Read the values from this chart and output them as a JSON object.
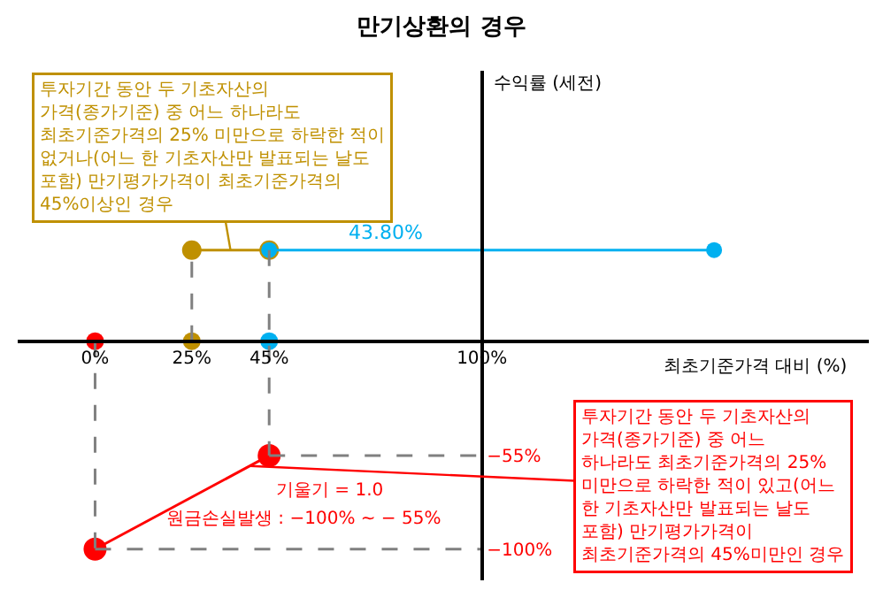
{
  "chart_data": {
    "type": "line",
    "title": "만기상환의 경우",
    "xlabel": "최초기준가격 대비 (%)",
    "ylabel": "수익률 (세전)",
    "xlim": [
      -20,
      200
    ],
    "ylim": [
      -115,
      130
    ],
    "xticks": [
      {
        "value": 0,
        "label": "0%"
      },
      {
        "value": 25,
        "label": "25%"
      },
      {
        "value": 45,
        "label": "45%"
      },
      {
        "value": 100,
        "label": "100%"
      }
    ],
    "yticks": [
      {
        "value": -55,
        "label": "−55%"
      },
      {
        "value": -100,
        "label": "−100%"
      }
    ],
    "series": [
      {
        "x": [
          0,
          45
        ],
        "values": [
          -100,
          -55
        ],
        "color": "#ff0000",
        "marker": "circle"
      },
      {
        "x": [
          25,
          45
        ],
        "values": [
          43.8,
          43.8
        ],
        "color": "#bf9000",
        "marker": "circle"
      },
      {
        "x": [
          45,
          160
        ],
        "values": [
          43.8,
          43.8
        ],
        "color": "#00b0f0",
        "marker": "circle"
      },
      {
        "type": "scatter",
        "x": [
          0,
          25,
          45
        ],
        "values": [
          0,
          0,
          0
        ],
        "colors": [
          "#ff0000",
          "#bf9000",
          "#00b0f0"
        ]
      },
      {
        "x": [
          0,
          0
        ],
        "values": [
          0,
          -100
        ],
        "color": "#808080",
        "line_style": "dashed",
        "marker": "none"
      },
      {
        "x": [
          25,
          25
        ],
        "values": [
          0,
          43.8
        ],
        "color": "#808080",
        "line_style": "dashed",
        "marker": "none"
      },
      {
        "x": [
          45,
          45
        ],
        "values": [
          43.8,
          -55
        ],
        "color": "#808080",
        "line_style": "dashed",
        "marker": "none"
      },
      {
        "x": [
          45,
          100
        ],
        "values": [
          -55,
          -55
        ],
        "color": "#808080",
        "line_style": "dashed",
        "marker": "none"
      },
      {
        "x": [
          0,
          100
        ],
        "values": [
          -100,
          -100
        ],
        "color": "#808080",
        "line_style": "dashed",
        "marker": "none"
      }
    ],
    "annotations": [
      {
        "text": "43.80%",
        "x": 75,
        "y": 43.8
      },
      {
        "text": "투자기간 동안 두 기초자산의 가격(종가기준) 중 어느 하나라도 최초기준가격의 25% 미만으로 하락한 적이 없거나(어느 한 기초자산만 발표되는 날도 포함) 만기평가가격이 최초기준가격의 45%이상인 경우",
        "x": 35,
        "y": 43.8
      },
      {
        "text": "투자기간 동안 두 기초자산의 가격(종가기준) 중 어느 하나라도 최초기준가격의 25% 미만으로 하락한 적이 있고(어느 한 기초자산만 발표되는 날도 포함) 만기평가가격이 최초기준가격의 45%미만인 경우",
        "x": 40,
        "y": -60
      },
      "기울기 = 1.0",
      "원금손실발생 : −100% ~ − 55%"
    ]
  }
}
